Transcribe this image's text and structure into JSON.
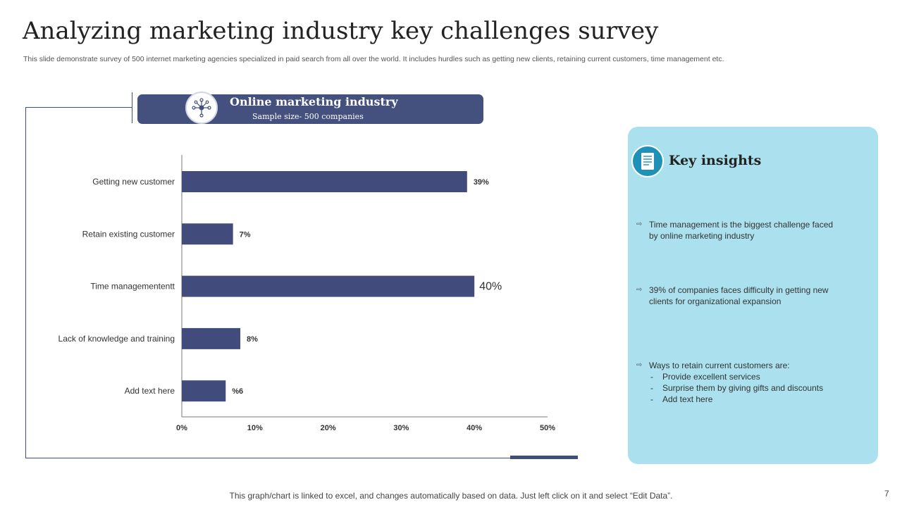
{
  "slide": {
    "title": "Analyzing marketing industry key challenges survey",
    "subtitle": "This slide demonstrate survey of 500 internet marketing agencies specialized in paid search from all over the world. It includes hurdles such as getting new clients, retaining current customers, time management etc.",
    "footnote": "This graph/chart is linked to excel, and changes automatically based on data. Just left click on it and select “Edit Data”.",
    "page_number": "7"
  },
  "banner": {
    "title": "Online marketing industry",
    "subtitle": "Sample size- 500 companies",
    "icon": "network-icon"
  },
  "colors": {
    "bar": "#414c7d",
    "banner": "#44507e",
    "panel": "#abe1ee",
    "panel_icon": "#1f91b6"
  },
  "chart_data": {
    "type": "bar",
    "orientation": "horizontal",
    "title": "",
    "xlabel": "",
    "ylabel": "",
    "categories": [
      "Getting new customer",
      "Retain existing customer",
      "Time managemententt",
      "Lack of knowledge and training",
      "Add text here"
    ],
    "values": [
      39,
      7,
      40,
      8,
      6
    ],
    "data_labels": [
      "39%",
      "7%",
      "40%",
      "8%",
      "%6"
    ],
    "xlim": [
      0,
      50
    ],
    "x_ticks": [
      0,
      10,
      20,
      30,
      40,
      50
    ],
    "x_tick_labels": [
      "0%",
      "10%",
      "20%",
      "30%",
      "40%",
      "50%"
    ],
    "grid": false,
    "highlight_index": 2
  },
  "insights": {
    "title": "Key insights",
    "icon": "document-icon",
    "items": [
      {
        "text": "Time management  is the biggest challenge faced by online marketing industry"
      },
      {
        "text": "39% of companies faces difficulty in getting new clients for organizational  expansion"
      },
      {
        "text": "Ways to retain current customers are:"
      }
    ],
    "sub_items": [
      "Provide  excellent services",
      "Surprise them by giving gifts and discounts",
      "Add text here"
    ]
  }
}
